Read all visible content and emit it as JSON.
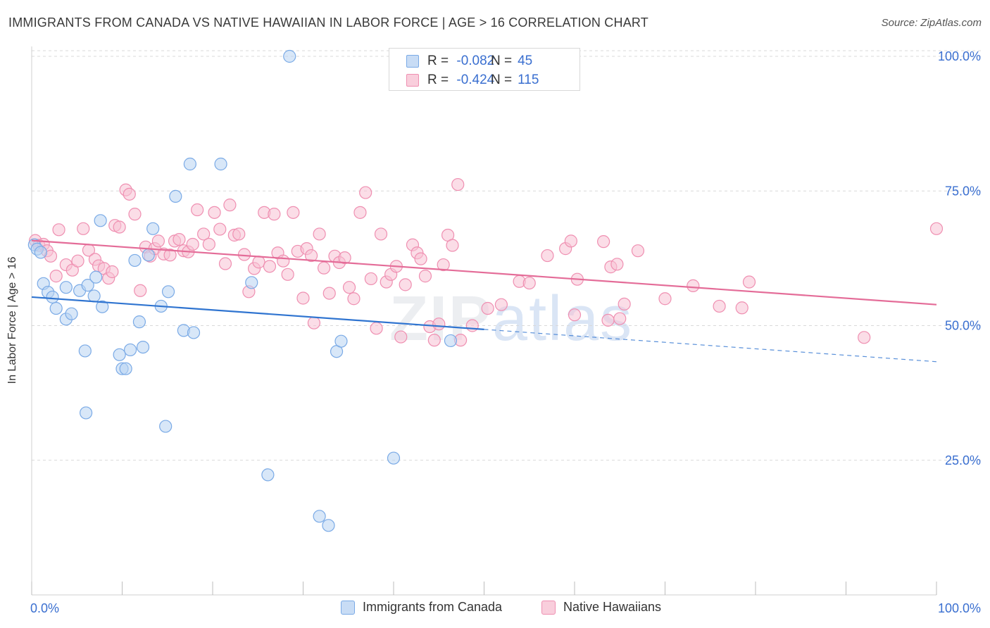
{
  "header": {
    "title": "IMMIGRANTS FROM CANADA VS NATIVE HAWAIIAN IN LABOR FORCE | AGE > 16 CORRELATION CHART",
    "source_label": "Source:",
    "source_value": "ZipAtlas.com"
  },
  "watermark": {
    "zip": "ZIP",
    "atlas": "atlas"
  },
  "legend_top": {
    "series1": {
      "r_label": "R = ",
      "r_value": "-0.082",
      "n_label": "N = ",
      "n_value": "45"
    },
    "series2": {
      "r_label": "R = ",
      "r_value": "-0.424",
      "n_label": "N = ",
      "n_value": "115"
    }
  },
  "colors": {
    "blue_fill": "#b8d3f2",
    "blue_stroke": "#7aaae6",
    "blue_line": "#2f74d0",
    "pink_fill": "#f7c1d3",
    "pink_stroke": "#ef8fb1",
    "pink_line": "#e46c98",
    "tick_label": "#3a6fd0",
    "grid": "#d9d9d9"
  },
  "chart_data": {
    "type": "scatter",
    "title": "IMMIGRANTS FROM CANADA VS NATIVE HAWAIIAN IN LABOR FORCE | AGE > 16 CORRELATION CHART",
    "xlabel": "",
    "ylabel": "In Labor Force | Age > 16",
    "xlim": [
      0,
      100
    ],
    "ylim": [
      0,
      104
    ],
    "x_tick_labels": [
      "0.0%",
      "100.0%"
    ],
    "y_ticks": [
      25,
      50,
      75,
      100
    ],
    "y_tick_labels": [
      "25.0%",
      "50.0%",
      "75.0%",
      "100.0%"
    ],
    "grid": true,
    "legend_placement": "bottom",
    "series": [
      {
        "name": "Immigrants from Canada",
        "color": "#7aaae6",
        "points": [
          [
            0.3,
            65.0
          ],
          [
            0.6,
            64.2
          ],
          [
            1.0,
            63.6
          ],
          [
            1.3,
            57.8
          ],
          [
            1.8,
            56.2
          ],
          [
            2.7,
            53.2
          ],
          [
            2.3,
            55.3
          ],
          [
            3.8,
            57.1
          ],
          [
            3.8,
            51.2
          ],
          [
            4.4,
            52.2
          ],
          [
            5.3,
            56.5
          ],
          [
            6.2,
            57.5
          ],
          [
            7.1,
            59.0
          ],
          [
            7.8,
            53.5
          ],
          [
            6.9,
            55.5
          ],
          [
            7.6,
            69.5
          ],
          [
            5.9,
            45.3
          ],
          [
            6.0,
            33.8
          ],
          [
            10.0,
            42.0
          ],
          [
            9.7,
            44.6
          ],
          [
            10.4,
            42.0
          ],
          [
            10.9,
            45.5
          ],
          [
            11.4,
            62.1
          ],
          [
            11.9,
            50.7
          ],
          [
            12.3,
            46.0
          ],
          [
            12.9,
            63.1
          ],
          [
            13.4,
            68.0
          ],
          [
            14.3,
            53.6
          ],
          [
            14.8,
            31.3
          ],
          [
            15.1,
            56.3
          ],
          [
            15.9,
            74.0
          ],
          [
            16.8,
            49.1
          ],
          [
            17.5,
            80.0
          ],
          [
            17.9,
            48.7
          ],
          [
            20.9,
            80.0
          ],
          [
            24.3,
            58.0
          ],
          [
            26.1,
            22.3
          ],
          [
            28.5,
            100.0
          ],
          [
            31.8,
            14.6
          ],
          [
            32.8,
            12.9
          ],
          [
            33.7,
            45.2
          ],
          [
            34.2,
            47.1
          ],
          [
            40.0,
            25.4
          ],
          [
            46.3,
            47.2
          ],
          [
            48.2,
            100.0
          ]
        ]
      },
      {
        "name": "Native Hawaiians",
        "color": "#ef8fb1",
        "points": [
          [
            0.4,
            65.8
          ],
          [
            0.8,
            64.9
          ],
          [
            1.3,
            65.1
          ],
          [
            1.7,
            63.9
          ],
          [
            2.1,
            62.9
          ],
          [
            2.7,
            59.2
          ],
          [
            3.0,
            67.8
          ],
          [
            3.8,
            61.3
          ],
          [
            4.5,
            60.3
          ],
          [
            5.1,
            62.0
          ],
          [
            5.7,
            68.0
          ],
          [
            6.3,
            64.0
          ],
          [
            7.0,
            62.3
          ],
          [
            7.4,
            61.1
          ],
          [
            8.0,
            60.6
          ],
          [
            8.5,
            58.8
          ],
          [
            8.9,
            60.0
          ],
          [
            9.2,
            68.6
          ],
          [
            9.7,
            68.3
          ],
          [
            10.4,
            75.2
          ],
          [
            10.8,
            74.4
          ],
          [
            11.4,
            70.7
          ],
          [
            12.0,
            56.5
          ],
          [
            12.6,
            64.6
          ],
          [
            13.1,
            62.9
          ],
          [
            13.6,
            64.3
          ],
          [
            14.0,
            65.7
          ],
          [
            14.6,
            63.3
          ],
          [
            15.3,
            63.1
          ],
          [
            15.8,
            65.7
          ],
          [
            16.3,
            66.0
          ],
          [
            16.8,
            63.9
          ],
          [
            17.3,
            63.7
          ],
          [
            17.8,
            65.1
          ],
          [
            18.3,
            71.5
          ],
          [
            19.0,
            67.0
          ],
          [
            19.6,
            65.1
          ],
          [
            20.2,
            71.0
          ],
          [
            20.8,
            67.9
          ],
          [
            21.4,
            61.5
          ],
          [
            21.9,
            72.4
          ],
          [
            22.4,
            66.8
          ],
          [
            22.9,
            67.0
          ],
          [
            23.5,
            63.2
          ],
          [
            24.0,
            56.3
          ],
          [
            24.6,
            60.6
          ],
          [
            25.1,
            61.8
          ],
          [
            25.7,
            71.0
          ],
          [
            26.3,
            61.0
          ],
          [
            26.8,
            70.7
          ],
          [
            27.2,
            63.5
          ],
          [
            27.8,
            62.0
          ],
          [
            28.3,
            59.5
          ],
          [
            28.9,
            71.0
          ],
          [
            29.4,
            63.8
          ],
          [
            30.0,
            55.1
          ],
          [
            30.4,
            64.3
          ],
          [
            30.9,
            63.0
          ],
          [
            31.2,
            50.5
          ],
          [
            31.8,
            67.0
          ],
          [
            32.3,
            60.7
          ],
          [
            32.9,
            56.0
          ],
          [
            33.5,
            62.9
          ],
          [
            34.0,
            61.7
          ],
          [
            34.6,
            62.6
          ],
          [
            35.1,
            57.1
          ],
          [
            35.6,
            55.0
          ],
          [
            36.3,
            71.0
          ],
          [
            36.9,
            74.7
          ],
          [
            37.5,
            58.7
          ],
          [
            38.1,
            49.5
          ],
          [
            38.6,
            67.0
          ],
          [
            39.2,
            58.1
          ],
          [
            39.7,
            59.5
          ],
          [
            40.3,
            61.0
          ],
          [
            40.8,
            47.9
          ],
          [
            41.3,
            57.6
          ],
          [
            42.1,
            65.0
          ],
          [
            42.6,
            63.5
          ],
          [
            43.0,
            62.4
          ],
          [
            43.5,
            59.2
          ],
          [
            44.0,
            49.8
          ],
          [
            44.5,
            47.3
          ],
          [
            45.0,
            50.3
          ],
          [
            45.5,
            61.3
          ],
          [
            46.0,
            66.8
          ],
          [
            46.5,
            64.9
          ],
          [
            47.1,
            76.2
          ],
          [
            47.4,
            47.3
          ],
          [
            50.4,
            53.2
          ],
          [
            51.9,
            53.9
          ],
          [
            53.9,
            58.2
          ],
          [
            55.0,
            57.9
          ],
          [
            57.0,
            63.0
          ],
          [
            59.0,
            64.3
          ],
          [
            59.6,
            65.7
          ],
          [
            60.0,
            52.0
          ],
          [
            60.3,
            58.6
          ],
          [
            63.2,
            65.6
          ],
          [
            63.7,
            51.0
          ],
          [
            64.0,
            60.9
          ],
          [
            64.7,
            61.4
          ],
          [
            65.0,
            51.3
          ],
          [
            65.5,
            54.0
          ],
          [
            67.0,
            63.9
          ],
          [
            70.0,
            55.0
          ],
          [
            73.1,
            57.4
          ],
          [
            76.0,
            53.6
          ],
          [
            78.5,
            53.3
          ],
          [
            79.3,
            58.1
          ],
          [
            92.0,
            47.8
          ],
          [
            100.0,
            68.0
          ],
          [
            48.7,
            50.0
          ]
        ]
      }
    ],
    "trend_lines": [
      {
        "series": "Immigrants from Canada",
        "solid": [
          [
            0,
            55.3
          ],
          [
            50,
            49.3
          ]
        ],
        "dashed": [
          [
            50,
            49.3
          ],
          [
            100,
            43.3
          ]
        ]
      },
      {
        "series": "Native Hawaiians",
        "solid": [
          [
            0,
            65.8
          ],
          [
            100,
            53.9
          ]
        ]
      }
    ]
  }
}
